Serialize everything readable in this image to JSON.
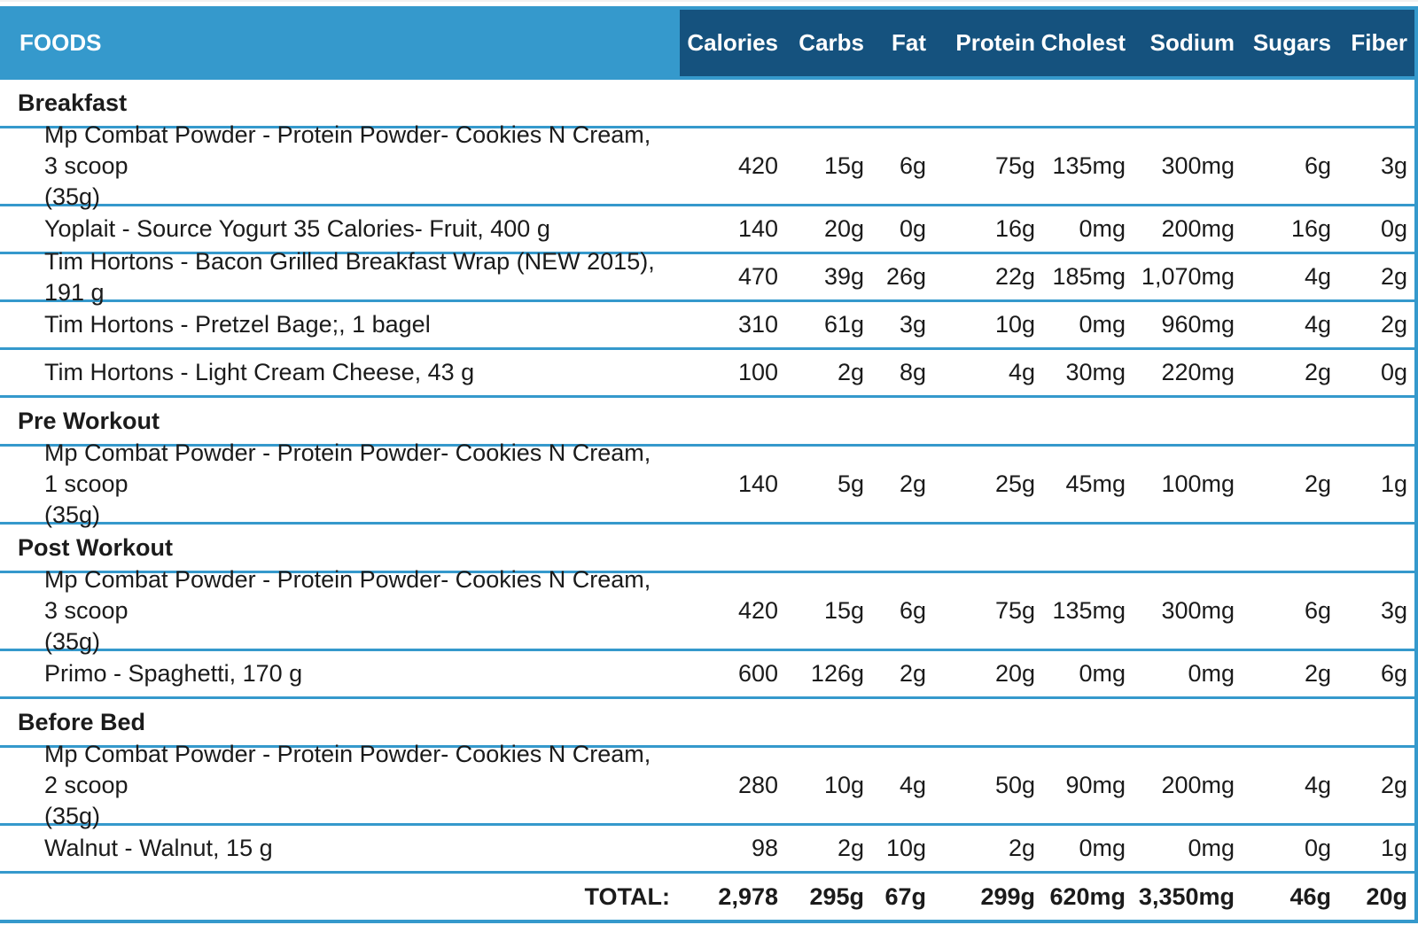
{
  "colors": {
    "header_light_blue": "#3599CC",
    "header_dark_blue": "#15527E",
    "divider_blue": "#3599CC",
    "header_text": "#FFFFFF",
    "body_text": "#1B1B1B"
  },
  "header": {
    "foods_label": "FOODS",
    "columns": [
      "Calories",
      "Carbs",
      "Fat",
      "Protein",
      "Cholest",
      "Sodium",
      "Sugars",
      "Fiber"
    ]
  },
  "sections": [
    {
      "name": "Breakfast",
      "items": [
        {
          "name_lines": [
            "Mp Combat Powder - Protein Powder- Cookies N Cream, 3 scoop",
            "(35g)"
          ],
          "values": [
            "420",
            "15g",
            "6g",
            "75g",
            "135mg",
            "300mg",
            "6g",
            "3g"
          ]
        },
        {
          "name_lines": [
            "Yoplait - Source Yogurt 35 Calories- Fruit, 400 g"
          ],
          "values": [
            "140",
            "20g",
            "0g",
            "16g",
            "0mg",
            "200mg",
            "16g",
            "0g"
          ]
        },
        {
          "name_lines": [
            "Tim Hortons - Bacon Grilled Breakfast Wrap (NEW 2015), 191 g"
          ],
          "values": [
            "470",
            "39g",
            "26g",
            "22g",
            "185mg",
            "1,070mg",
            "4g",
            "2g"
          ]
        },
        {
          "name_lines": [
            "Tim Hortons - Pretzel Bage;, 1 bagel"
          ],
          "values": [
            "310",
            "61g",
            "3g",
            "10g",
            "0mg",
            "960mg",
            "4g",
            "2g"
          ]
        },
        {
          "name_lines": [
            "Tim Hortons - Light Cream Cheese, 43 g"
          ],
          "values": [
            "100",
            "2g",
            "8g",
            "4g",
            "30mg",
            "220mg",
            "2g",
            "0g"
          ]
        }
      ]
    },
    {
      "name": "Pre Workout",
      "items": [
        {
          "name_lines": [
            "Mp Combat Powder - Protein Powder- Cookies N Cream, 1 scoop",
            "(35g)"
          ],
          "values": [
            "140",
            "5g",
            "2g",
            "25g",
            "45mg",
            "100mg",
            "2g",
            "1g"
          ]
        }
      ]
    },
    {
      "name": "Post Workout",
      "items": [
        {
          "name_lines": [
            "Mp Combat Powder - Protein Powder- Cookies N Cream, 3 scoop",
            "(35g)"
          ],
          "values": [
            "420",
            "15g",
            "6g",
            "75g",
            "135mg",
            "300mg",
            "6g",
            "3g"
          ]
        },
        {
          "name_lines": [
            "Primo - Spaghetti, 170 g"
          ],
          "values": [
            "600",
            "126g",
            "2g",
            "20g",
            "0mg",
            "0mg",
            "2g",
            "6g"
          ]
        }
      ]
    },
    {
      "name": "Before Bed",
      "items": [
        {
          "name_lines": [
            "Mp Combat Powder - Protein Powder- Cookies N Cream, 2 scoop",
            "(35g)"
          ],
          "values": [
            "280",
            "10g",
            "4g",
            "50g",
            "90mg",
            "200mg",
            "4g",
            "2g"
          ]
        },
        {
          "name_lines": [
            "Walnut - Walnut, 15 g"
          ],
          "values": [
            "98",
            "2g",
            "10g",
            "2g",
            "0mg",
            "0mg",
            "0g",
            "1g"
          ]
        }
      ]
    }
  ],
  "total": {
    "label": "TOTAL:",
    "values": [
      "2,978",
      "295g",
      "67g",
      "299g",
      "620mg",
      "3,350mg",
      "46g",
      "20g"
    ]
  }
}
